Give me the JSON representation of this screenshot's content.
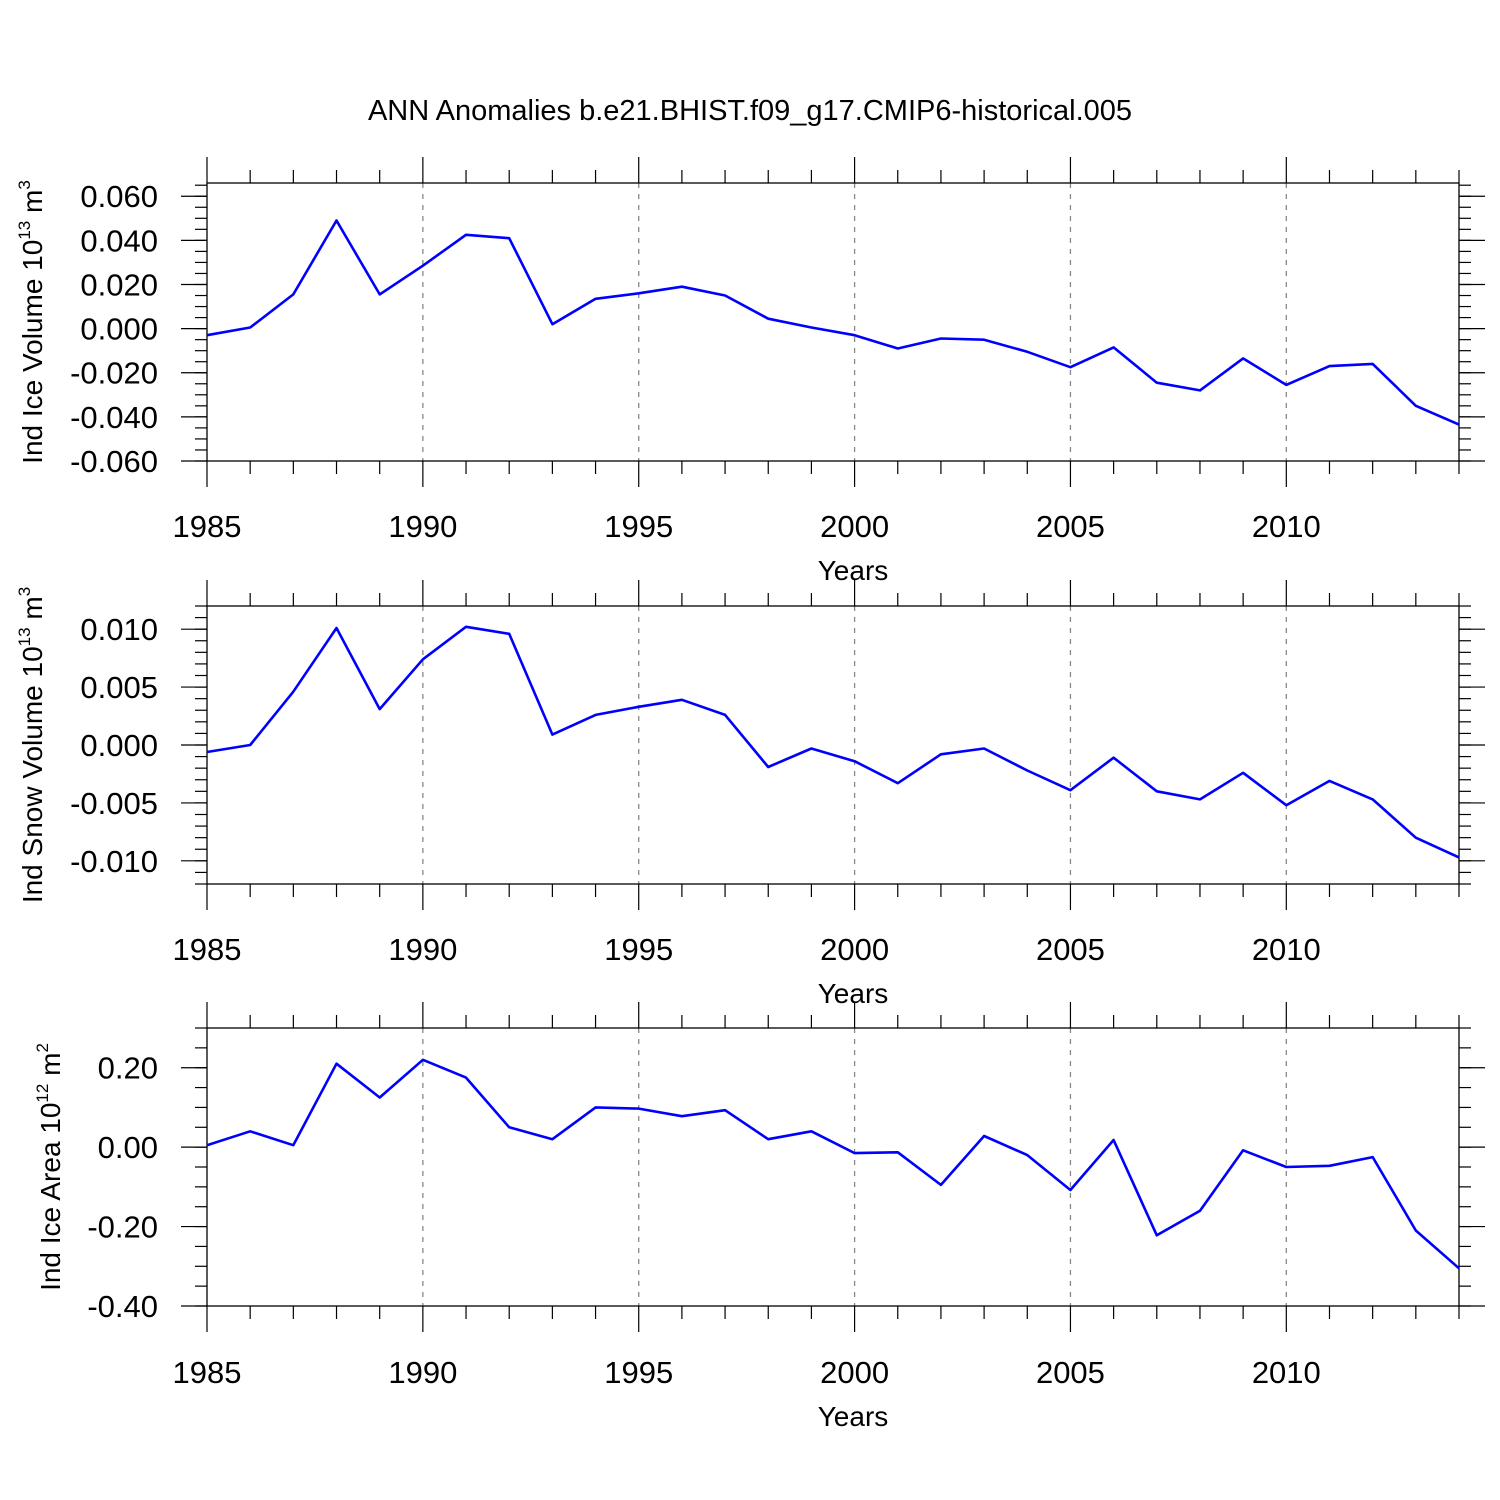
{
  "title": "ANN Anomalies b.e21.BHIST.f09_g17.CMIP6-historical.005",
  "colors": {
    "line": "#0000ff",
    "grid": "#888888",
    "axes": "#000000"
  },
  "chart_data": [
    {
      "type": "line",
      "ylabel": {
        "text": "Ind Ice Volume 10",
        "exp": "13",
        "unit": " m",
        "unit_exp": "3"
      },
      "xlabel": "Years",
      "xlim": [
        1985,
        2014
      ],
      "ylim": [
        -0.06,
        0.066
      ],
      "xticks": [
        "1985",
        "1990",
        "1995",
        "2000",
        "2005",
        "2010"
      ],
      "yticks": [
        "-0.060",
        "-0.040",
        "-0.020",
        "0.000",
        "0.020",
        "0.040",
        "0.060"
      ],
      "ytick_values": [
        -0.06,
        -0.04,
        -0.02,
        0.0,
        0.02,
        0.04,
        0.06
      ],
      "minor_y_step": 0.005,
      "grid": "vertical dashed at major x ticks",
      "x": [
        1985,
        1986,
        1987,
        1988,
        1989,
        1990,
        1991,
        1992,
        1993,
        1994,
        1995,
        1996,
        1997,
        1998,
        1999,
        2000,
        2001,
        2002,
        2003,
        2004,
        2005,
        2006,
        2007,
        2008,
        2009,
        2010,
        2011,
        2012,
        2013,
        2014
      ],
      "values": [
        -0.003,
        0.0005,
        0.0155,
        0.049,
        0.0155,
        0.0285,
        0.0425,
        0.041,
        0.002,
        0.0135,
        0.016,
        0.019,
        0.015,
        0.0045,
        0.0005,
        -0.003,
        -0.009,
        -0.0045,
        -0.005,
        -0.0105,
        -0.0175,
        -0.0085,
        -0.0245,
        -0.028,
        -0.0135,
        -0.0255,
        -0.017,
        -0.016,
        -0.035,
        -0.0435
      ]
    },
    {
      "type": "line",
      "ylabel": {
        "text": "Ind Snow Volume 10",
        "exp": "13",
        "unit": " m",
        "unit_exp": "3"
      },
      "xlabel": "Years",
      "xlim": [
        1985,
        2014
      ],
      "ylim": [
        -0.012,
        0.012
      ],
      "xticks": [
        "1985",
        "1990",
        "1995",
        "2000",
        "2005",
        "2010"
      ],
      "yticks": [
        "-0.010",
        "-0.005",
        "0.000",
        "0.005",
        "0.010"
      ],
      "ytick_values": [
        -0.01,
        -0.005,
        0.0,
        0.005,
        0.01
      ],
      "minor_y_step": 0.001,
      "grid": "vertical dashed at major x ticks",
      "x": [
        1985,
        1986,
        1987,
        1988,
        1989,
        1990,
        1991,
        1992,
        1993,
        1994,
        1995,
        1996,
        1997,
        1998,
        1999,
        2000,
        2001,
        2002,
        2003,
        2004,
        2005,
        2006,
        2007,
        2008,
        2009,
        2010,
        2011,
        2012,
        2013,
        2014
      ],
      "values": [
        -0.0006,
        0.0,
        0.0046,
        0.0101,
        0.0031,
        0.0074,
        0.0102,
        0.0096,
        0.0009,
        0.0026,
        0.0033,
        0.0039,
        0.0026,
        -0.0019,
        -0.0003,
        -0.0014,
        -0.0033,
        -0.0008,
        -0.0003,
        -0.0022,
        -0.0039,
        -0.0011,
        -0.004,
        -0.0047,
        -0.0024,
        -0.0052,
        -0.0031,
        -0.0047,
        -0.008,
        -0.0097
      ]
    },
    {
      "type": "line",
      "ylabel": {
        "text": "Ind Ice Area 10",
        "exp": "12",
        "unit": " m",
        "unit_exp": "2"
      },
      "xlabel": "Years",
      "xlim": [
        1985,
        2014
      ],
      "ylim": [
        -0.4,
        0.3
      ],
      "xticks": [
        "1985",
        "1990",
        "1995",
        "2000",
        "2005",
        "2010"
      ],
      "yticks": [
        "-0.40",
        "-0.20",
        "0.00",
        "0.20"
      ],
      "ytick_values": [
        -0.4,
        -0.2,
        0.0,
        0.2
      ],
      "minor_y_step": 0.05,
      "grid": "vertical dashed at major x ticks",
      "x": [
        1985,
        1986,
        1987,
        1988,
        1989,
        1990,
        1991,
        1992,
        1993,
        1994,
        1995,
        1996,
        1997,
        1998,
        1999,
        2000,
        2001,
        2002,
        2003,
        2004,
        2005,
        2006,
        2007,
        2008,
        2009,
        2010,
        2011,
        2012,
        2013,
        2014
      ],
      "values": [
        0.005,
        0.04,
        0.005,
        0.21,
        0.125,
        0.22,
        0.175,
        0.05,
        0.02,
        0.1,
        0.097,
        0.078,
        0.093,
        0.02,
        0.04,
        -0.015,
        -0.013,
        -0.095,
        0.028,
        -0.02,
        -0.108,
        0.018,
        -0.222,
        -0.16,
        -0.008,
        -0.05,
        -0.047,
        -0.025,
        -0.21,
        -0.305
      ]
    }
  ]
}
